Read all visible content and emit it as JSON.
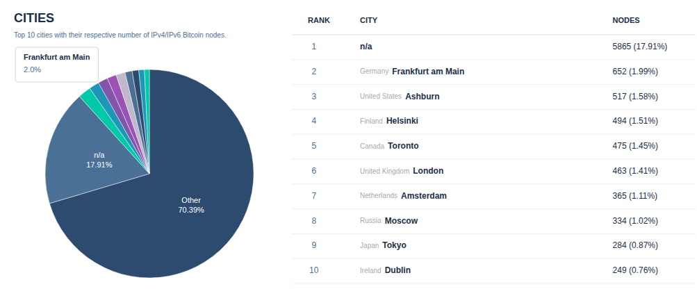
{
  "chart_data": [
    {
      "type": "pie",
      "title": "CITIES",
      "subtitle": "Top 10 cities with their respective number of IPv4/IPv6 Bitcoin nodes.",
      "categories": [
        "Other",
        "n/a",
        null,
        null,
        null,
        null,
        null,
        null,
        null,
        null,
        null
      ],
      "values": [
        70.39,
        17.91,
        1.99,
        1.58,
        1.51,
        1.45,
        1.41,
        1.11,
        1.02,
        0.87,
        0.76
      ],
      "value_labels": [
        "70.39%",
        "17.91%",
        null,
        null,
        null,
        null,
        null,
        null,
        null,
        null,
        null
      ],
      "colors": [
        "#2d4b6e",
        "#4a7096",
        "#00c9a7",
        "#1c97b5",
        "#8055aa",
        "#9b52b5",
        "#c0b8cc",
        "#4a7096",
        "#2d4b6e",
        "#1c97b5",
        "#00c9a7"
      ],
      "annotations": [
        "Frankfurt am Main",
        "2.0%"
      ]
    },
    {
      "type": "table",
      "columns": [
        "RANK",
        "CITY",
        "NODES"
      ],
      "ranks": [
        1,
        2,
        3,
        4,
        5,
        6,
        7,
        8,
        9,
        10
      ],
      "countries": [
        null,
        "Germany",
        "United States",
        "Finland",
        "Canada",
        "United Kingdom",
        "Netherlands",
        "Russia",
        "Japan",
        "Ireland"
      ],
      "cities": [
        "n/a",
        "Frankfurt am Main",
        "Ashburn",
        "Helsinki",
        "Toronto",
        "London",
        "Amsterdam",
        "Moscow",
        "Tokyo",
        "Dublin"
      ],
      "nodes": [
        "5865 (17.91%)",
        "652 (1.99%)",
        "517 (1.58%)",
        "494 (1.51%)",
        "475 (1.45%)",
        "463 (1.41%)",
        "365 (1.11%)",
        "334 (1.02%)",
        "284 (0.87%)",
        "249 (0.76%)"
      ]
    }
  ]
}
